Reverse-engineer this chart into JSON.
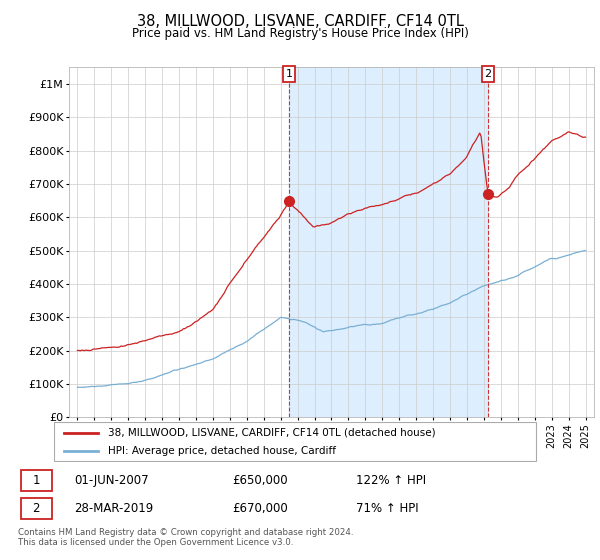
{
  "title": "38, MILLWOOD, LISVANE, CARDIFF, CF14 0TL",
  "subtitle": "Price paid vs. HM Land Registry's House Price Index (HPI)",
  "red_line_color": "#cc2222",
  "blue_line_color": "#7aafd4",
  "vline_color": "#cc2222",
  "shade_color": "#ddeeff",
  "grid_color": "#cccccc",
  "bg_color": "#ffffff",
  "legend_entry1": "38, MILLWOOD, LISVANE, CARDIFF, CF14 0TL (detached house)",
  "legend_entry2": "HPI: Average price, detached house, Cardiff",
  "table_row1": [
    "1",
    "01-JUN-2007",
    "£650,000",
    "122% ↑ HPI"
  ],
  "table_row2": [
    "2",
    "28-MAR-2019",
    "£670,000",
    "71% ↑ HPI"
  ],
  "footnote": "Contains HM Land Registry data © Crown copyright and database right 2024.\nThis data is licensed under the Open Government Licence v3.0.",
  "ylabel_ticks": [
    "£0",
    "£100K",
    "£200K",
    "£300K",
    "£400K",
    "£500K",
    "£600K",
    "£700K",
    "£800K",
    "£900K",
    "£1M"
  ],
  "ylabel_values": [
    0,
    100000,
    200000,
    300000,
    400000,
    500000,
    600000,
    700000,
    800000,
    900000,
    1000000
  ],
  "ylim": [
    0,
    1050000
  ],
  "year_start": 1995,
  "year_end": 2025,
  "sale1_year": 2007.5,
  "sale1_red_val": 650000,
  "sale2_year": 2019.25,
  "sale2_red_val": 670000
}
